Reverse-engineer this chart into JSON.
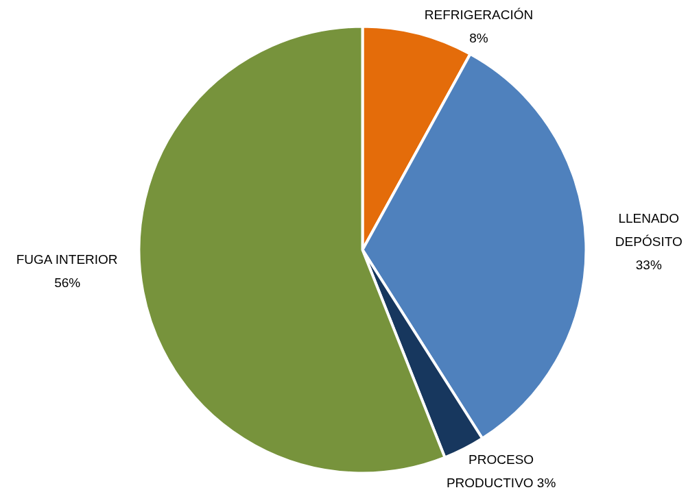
{
  "chart_data": {
    "type": "pie",
    "categories": [
      "REFRIGERACIÓN",
      "LLENADO DEPÓSITO",
      "PROCESO PRODUCTIVO",
      "FUGA INTERIOR"
    ],
    "values": [
      8,
      33,
      3,
      56
    ],
    "colors": [
      "#e46c0a",
      "#4f81bd",
      "#17375e",
      "#77933c"
    ],
    "value_labels": [
      "8%",
      "33%",
      "3%",
      "56%"
    ]
  }
}
